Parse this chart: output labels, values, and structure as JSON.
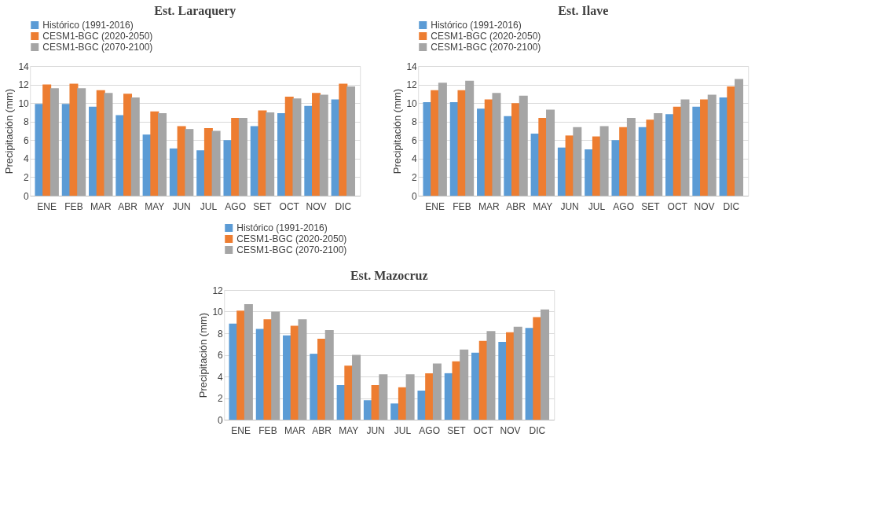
{
  "chart_data": [
    {
      "type": "bar",
      "title": "Est. Laraquery",
      "ylabel": "Precipitación (mm)",
      "categories": [
        "ENE",
        "FEB",
        "MAR",
        "ABR",
        "MAY",
        "JUN",
        "JUL",
        "AGO",
        "SET",
        "OCT",
        "NOV",
        "DIC"
      ],
      "ylim": [
        0,
        14
      ],
      "yticks": [
        0,
        2,
        4,
        6,
        8,
        10,
        12,
        14
      ],
      "grid": "y",
      "legend": "top",
      "series": [
        {
          "name": "Histórico (1991-2016)",
          "color": "#5b9bd5",
          "values": [
            9.9,
            9.9,
            9.6,
            8.7,
            6.6,
            5.1,
            4.9,
            6.0,
            7.5,
            8.9,
            9.7,
            10.4
          ]
        },
        {
          "name": "CESM1-BGC (2020-2050)",
          "color": "#ed7d31",
          "values": [
            12.0,
            12.1,
            11.4,
            11.0,
            9.1,
            7.5,
            7.3,
            8.4,
            9.2,
            10.7,
            11.1,
            12.1
          ]
        },
        {
          "name": "CESM1-BGC (2070-2100)",
          "color": "#a5a5a5",
          "values": [
            11.6,
            11.6,
            11.1,
            10.6,
            8.9,
            7.2,
            7.0,
            8.4,
            9.0,
            10.5,
            10.9,
            11.8
          ]
        }
      ]
    },
    {
      "type": "bar",
      "title": "Est. Ilave",
      "ylabel": "Precipitación (mm)",
      "categories": [
        "ENE",
        "FEB",
        "MAR",
        "ABR",
        "MAY",
        "JUN",
        "JUL",
        "AGO",
        "SET",
        "OCT",
        "NOV",
        "DIC"
      ],
      "ylim": [
        0,
        14
      ],
      "yticks": [
        0,
        2,
        4,
        6,
        8,
        10,
        12,
        14
      ],
      "grid": "y",
      "legend": "top",
      "series": [
        {
          "name": "Histórico (1991-2016)",
          "color": "#5b9bd5",
          "values": [
            10.1,
            10.1,
            9.4,
            8.6,
            6.7,
            5.2,
            5.0,
            6.0,
            7.4,
            8.8,
            9.6,
            10.6
          ]
        },
        {
          "name": "CESM1-BGC (2020-2050)",
          "color": "#ed7d31",
          "values": [
            11.4,
            11.4,
            10.4,
            10.0,
            8.4,
            6.5,
            6.4,
            7.4,
            8.2,
            9.6,
            10.4,
            11.8
          ]
        },
        {
          "name": "CESM1-BGC (2070-2100)",
          "color": "#a5a5a5",
          "values": [
            12.2,
            12.4,
            11.1,
            10.8,
            9.3,
            7.4,
            7.5,
            8.4,
            8.9,
            10.4,
            10.9,
            12.6
          ]
        }
      ]
    },
    {
      "type": "bar",
      "title": "Est. Mazocruz",
      "ylabel": "Precipitación (mm)",
      "categories": [
        "ENE",
        "FEB",
        "MAR",
        "ABR",
        "MAY",
        "JUN",
        "JUL",
        "AGO",
        "SET",
        "OCT",
        "NOV",
        "DIC"
      ],
      "ylim": [
        0,
        12
      ],
      "yticks": [
        0,
        2,
        4,
        6,
        8,
        10,
        12
      ],
      "grid": "y",
      "legend": "top",
      "series": [
        {
          "name": "Histórico (1991-2016)",
          "color": "#5b9bd5",
          "values": [
            8.9,
            8.4,
            7.8,
            6.1,
            3.2,
            1.8,
            1.5,
            2.7,
            4.3,
            6.2,
            7.2,
            8.5
          ]
        },
        {
          "name": "CESM1-BGC (2020-2050)",
          "color": "#ed7d31",
          "values": [
            10.1,
            9.3,
            8.7,
            7.5,
            5.0,
            3.2,
            3.0,
            4.3,
            5.4,
            7.3,
            8.1,
            9.5
          ]
        },
        {
          "name": "CESM1-BGC (2070-2100)",
          "color": "#a5a5a5",
          "values": [
            10.7,
            10.0,
            9.3,
            8.3,
            6.0,
            4.2,
            4.2,
            5.2,
            6.5,
            8.2,
            8.6,
            10.2
          ]
        }
      ]
    }
  ]
}
